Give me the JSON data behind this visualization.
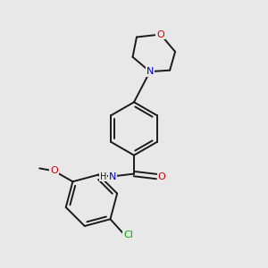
{
  "bg_color": "#e8e8e8",
  "bond_color": "#1a1a1a",
  "bond_width": 1.4,
  "atom_N_color": "#0000cc",
  "atom_O_color": "#cc0000",
  "atom_Cl_color": "#00aa00",
  "figsize": [
    3.0,
    3.0
  ],
  "dpi": 100,
  "xlim": [
    0,
    10
  ],
  "ylim": [
    0,
    10
  ]
}
